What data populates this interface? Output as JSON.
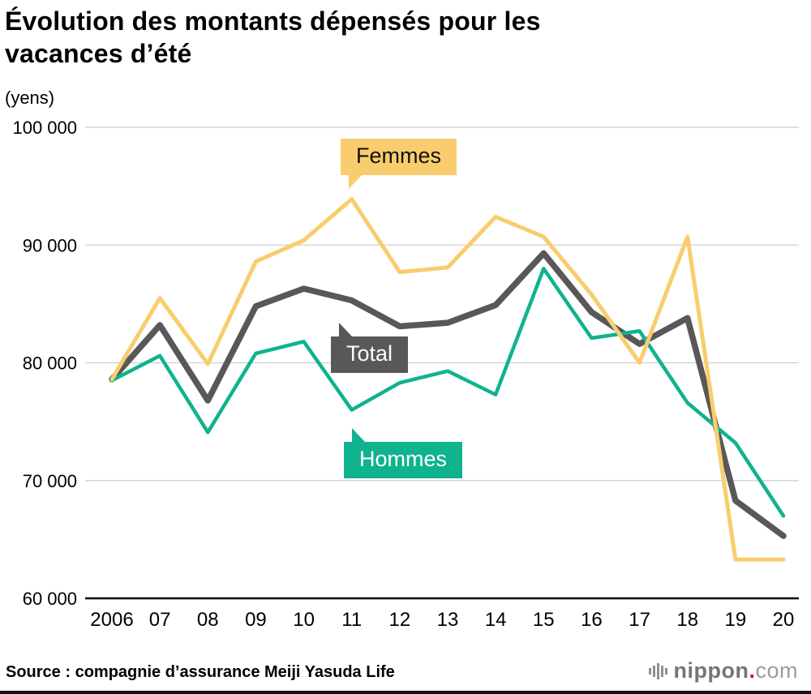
{
  "title": "Évolution des montants dépensés pour les\nvacances d’été",
  "y_axis_unit": "(yens)",
  "source": "Source : compagnie d’assurance Meiji Yasuda Life",
  "logo": {
    "icon": "bars-icon",
    "name": "nippon",
    "dot": ".",
    "tld": "com",
    "dot_color": "#e60012"
  },
  "chart_data": {
    "type": "line",
    "title": "Évolution des montants dépensés pour les vacances d’été",
    "unit": "yens",
    "categories": [
      "2006",
      "07",
      "08",
      "09",
      "10",
      "11",
      "12",
      "13",
      "14",
      "15",
      "16",
      "17",
      "18",
      "19",
      "20"
    ],
    "series": [
      {
        "name": "Femmes",
        "color": "#F9CD6E",
        "values": [
          78600,
          85500,
          79900,
          88600,
          90400,
          93900,
          87700,
          88100,
          92400,
          90700,
          85800,
          80000,
          90700,
          63300,
          63300
        ]
      },
      {
        "name": "Total",
        "color": "#595757",
        "values": [
          78600,
          83200,
          76800,
          84800,
          86300,
          85300,
          83100,
          83400,
          84900,
          89300,
          84300,
          81600,
          83800,
          68300,
          65300
        ]
      },
      {
        "name": "Hommes",
        "color": "#0FB38D",
        "values": [
          78500,
          80600,
          74100,
          80800,
          81800,
          76000,
          78300,
          79300,
          77300,
          88000,
          82100,
          82700,
          76600,
          73200,
          67000
        ]
      }
    ],
    "ylim": [
      60000,
      100000
    ],
    "yticks": [
      60000,
      70000,
      80000,
      90000,
      100000
    ],
    "ytick_labels": [
      "60 000",
      "70 000",
      "80 000",
      "90 000",
      "100 000"
    ],
    "grid": true,
    "legend_position": "inline-labels",
    "axis_color": "#000000",
    "gridline_color": "#cfcfcf"
  }
}
